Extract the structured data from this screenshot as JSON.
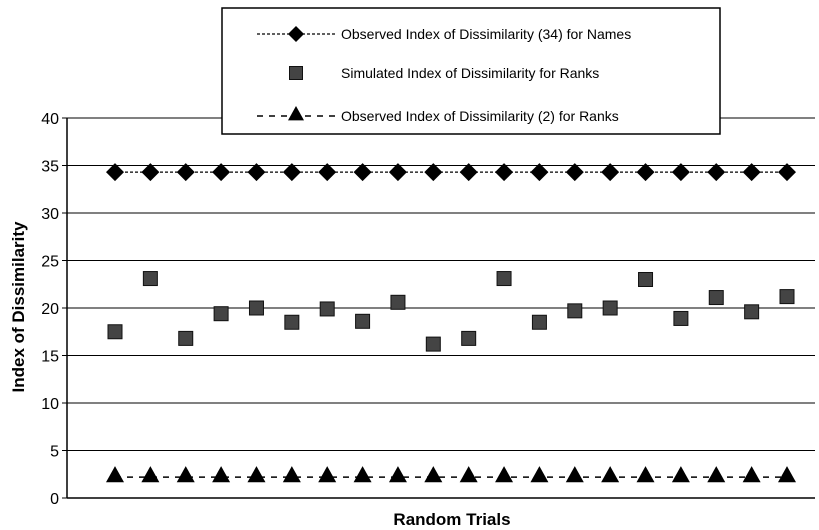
{
  "chart_data": {
    "type": "scatter",
    "title": "",
    "xlabel": "Random Trials",
    "ylabel": "Index of Dissimilarity",
    "ylim": [
      0,
      40
    ],
    "yticks": [
      0,
      5,
      10,
      15,
      20,
      25,
      30,
      35,
      40
    ],
    "x": [
      1,
      2,
      3,
      4,
      5,
      6,
      7,
      8,
      9,
      10,
      11,
      12,
      13,
      14,
      15,
      16,
      17,
      18,
      19,
      20
    ],
    "grid": "horizontal",
    "legend_position": "top-right",
    "series": [
      {
        "name": "Observed Index of Dissimilarity (34) for Names",
        "style": "dashed-line-diamond",
        "values": [
          34.3,
          34.3,
          34.3,
          34.3,
          34.3,
          34.3,
          34.3,
          34.3,
          34.3,
          34.3,
          34.3,
          34.3,
          34.3,
          34.3,
          34.3,
          34.3,
          34.3,
          34.3,
          34.3,
          34.3
        ]
      },
      {
        "name": "Simulated Index of Dissimilarity for Ranks",
        "style": "square-marker",
        "values": [
          17.5,
          23.1,
          16.8,
          19.4,
          20.0,
          18.5,
          19.9,
          18.6,
          20.6,
          16.2,
          16.8,
          23.1,
          18.5,
          19.7,
          20.0,
          23.0,
          18.9,
          21.1,
          19.6,
          21.2
        ]
      },
      {
        "name": "Observed Index of Dissimilarity (2) for Ranks",
        "style": "dashed-line-triangle",
        "values": [
          2.2,
          2.2,
          2.2,
          2.2,
          2.2,
          2.2,
          2.2,
          2.2,
          2.2,
          2.2,
          2.2,
          2.2,
          2.2,
          2.2,
          2.2,
          2.2,
          2.2,
          2.2,
          2.2,
          2.2
        ]
      }
    ],
    "colors": {
      "marker": "#000000",
      "square_fill": "#444444",
      "grid": "#000000"
    }
  }
}
